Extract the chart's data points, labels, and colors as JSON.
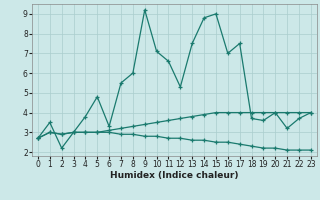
{
  "xlabel": "Humidex (Indice chaleur)",
  "xlim": [
    -0.5,
    23.5
  ],
  "ylim": [
    1.8,
    9.5
  ],
  "xticks": [
    0,
    1,
    2,
    3,
    4,
    5,
    6,
    7,
    8,
    9,
    10,
    11,
    12,
    13,
    14,
    15,
    16,
    17,
    18,
    19,
    20,
    21,
    22,
    23
  ],
  "yticks": [
    2,
    3,
    4,
    5,
    6,
    7,
    8,
    9
  ],
  "background_color": "#cce8e8",
  "grid_color": "#aacece",
  "line_color": "#1a7a6e",
  "line_main": [
    2.7,
    3.5,
    2.2,
    3.0,
    3.8,
    4.8,
    3.3,
    5.5,
    6.0,
    9.2,
    7.1,
    6.6,
    5.3,
    7.5,
    8.8,
    9.0,
    7.0,
    7.5,
    3.7,
    3.6,
    4.0,
    3.2,
    3.7,
    4.0
  ],
  "line_up": [
    2.7,
    3.0,
    2.9,
    3.0,
    3.0,
    3.0,
    3.1,
    3.2,
    3.3,
    3.4,
    3.5,
    3.6,
    3.7,
    3.8,
    3.9,
    4.0,
    4.0,
    4.0,
    4.0,
    4.0,
    4.0,
    4.0,
    4.0,
    4.0
  ],
  "line_down": [
    2.7,
    3.0,
    2.9,
    3.0,
    3.0,
    3.0,
    3.0,
    2.9,
    2.9,
    2.8,
    2.8,
    2.7,
    2.7,
    2.6,
    2.6,
    2.5,
    2.5,
    2.4,
    2.3,
    2.2,
    2.2,
    2.1,
    2.1,
    2.1
  ]
}
